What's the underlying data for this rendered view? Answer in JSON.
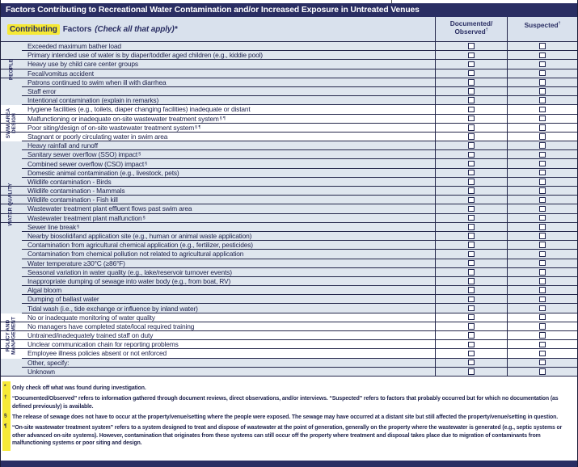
{
  "title": "Factors Contributing to Recreational Water Contamination and/or Increased Exposure in Untreated Venues",
  "header": {
    "contributing": "Contributing",
    "factors": "Factors",
    "check_note": "(Check all that apply)*",
    "col_documented_line1": "Documented/",
    "col_documented_line2": "Observed",
    "col_suspected": "Suspected",
    "dagger": "†"
  },
  "groups": [
    {
      "id": "people",
      "label": "PEOPLE",
      "lines": [
        "PEOPLE"
      ],
      "start": 1,
      "end": 4
    },
    {
      "id": "swim-area-design",
      "label": "SWIM AREA DESIGN",
      "lines": [
        "SWIM AREA",
        "DESIGN"
      ],
      "start": 7,
      "end": 10
    },
    {
      "id": "water-quality",
      "label": "WATER QUALITY",
      "lines": [
        "WATER QUALITY"
      ],
      "start": 15,
      "end": 20
    },
    {
      "id": "policy-and-management",
      "label": "POLICY AND MANAGEMENT",
      "lines": [
        "POLICY AND",
        "MANAGEMENT"
      ],
      "start": 30,
      "end": 34
    }
  ],
  "rows": [
    {
      "label": "Exceeded maximum bather load",
      "sup": "",
      "shaded": true,
      "group": null,
      "documented": false,
      "suspected": false
    },
    {
      "label": "Primary intended use of water is by diaper/toddler aged children (e.g., kiddie pool)",
      "sup": "",
      "shaded": true,
      "group": 0,
      "documented": false,
      "suspected": false
    },
    {
      "label": "Heavy use by child care center groups",
      "sup": "",
      "shaded": true,
      "group": 0,
      "documented": false,
      "suspected": false
    },
    {
      "label": "Fecal/vomitus accident",
      "sup": "",
      "shaded": true,
      "group": 0,
      "documented": false,
      "suspected": false
    },
    {
      "label": "Patrons continued to swim when ill with diarrhea",
      "sup": "",
      "shaded": true,
      "group": 0,
      "documented": false,
      "suspected": false
    },
    {
      "label": "Staff error",
      "sup": "",
      "shaded": true,
      "group": null,
      "documented": false,
      "suspected": false
    },
    {
      "label": "Intentional contamination (explain in remarks)",
      "sup": "",
      "shaded": true,
      "group": null,
      "documented": false,
      "suspected": false
    },
    {
      "label": "Hygiene facilities (e.g., toilets, diaper changing facilities) inadequate or distant",
      "sup": "",
      "shaded": false,
      "group": 1,
      "documented": false,
      "suspected": false
    },
    {
      "label": "Malfunctioning or inadequate on-site wastewater treatment system ",
      "sup": "§ ¶",
      "shaded": false,
      "group": 1,
      "documented": false,
      "suspected": false
    },
    {
      "label": "Poor siting/design of on-site wastewater treatment system ",
      "sup": "§ ¶",
      "shaded": false,
      "group": 1,
      "documented": false,
      "suspected": false
    },
    {
      "label": "Stagnant or poorly circulating water in swim area",
      "sup": "",
      "shaded": false,
      "group": 1,
      "documented": false,
      "suspected": false
    },
    {
      "label": "Heavy rainfall and runoff",
      "sup": "",
      "shaded": true,
      "group": null,
      "documented": false,
      "suspected": false
    },
    {
      "label": "Sanitary sewer overflow (SSO) impact ",
      "sup": "§",
      "shaded": true,
      "group": null,
      "documented": false,
      "suspected": false
    },
    {
      "label": "Combined sewer overflow (CSO) impact",
      "sup": "§",
      "shaded": true,
      "group": null,
      "documented": false,
      "suspected": false
    },
    {
      "label": "Domestic animal contamination (e.g., livestock, pets)",
      "sup": "",
      "shaded": true,
      "group": null,
      "documented": false,
      "suspected": false
    },
    {
      "label": "Wildlife contamination - Birds",
      "sup": "",
      "shaded": true,
      "group": 2,
      "documented": false,
      "suspected": false
    },
    {
      "label": "Wildlife contamination - Mammals",
      "sup": "",
      "shaded": true,
      "group": 2,
      "documented": false,
      "suspected": false
    },
    {
      "label": "Wildlife contamination - Fish kill",
      "sup": "",
      "shaded": true,
      "group": 2,
      "documented": false,
      "suspected": false
    },
    {
      "label": "Wastewater treatment plant effluent flows past swim area",
      "sup": "",
      "shaded": true,
      "group": 2,
      "documented": false,
      "suspected": false
    },
    {
      "label": "Wastewater treatment plant malfunction ",
      "sup": "§",
      "shaded": true,
      "group": 2,
      "documented": false,
      "suspected": false
    },
    {
      "label": "Sewer line break ",
      "sup": "§",
      "shaded": true,
      "group": 2,
      "documented": false,
      "suspected": false
    },
    {
      "label": "Nearby biosolid/land application site (e.g., human or animal waste application)",
      "sup": "",
      "shaded": true,
      "group": null,
      "documented": false,
      "suspected": false
    },
    {
      "label": "Contamination from agricultural chemical application (e.g., fertilizer, pesticides)",
      "sup": "",
      "shaded": true,
      "group": null,
      "documented": false,
      "suspected": false
    },
    {
      "label": "Contamination from chemical pollution not related to agricultural application",
      "sup": "",
      "shaded": true,
      "group": null,
      "documented": false,
      "suspected": false
    },
    {
      "label": "Water temperature ≥30°C (≥86°F)",
      "sup": "",
      "shaded": true,
      "group": null,
      "documented": false,
      "suspected": false
    },
    {
      "label": "Seasonal variation in water quality (e.g., lake/reservoir turnover events)",
      "sup": "",
      "shaded": true,
      "group": null,
      "documented": false,
      "suspected": false
    },
    {
      "label": "Inappropriate dumping of sewage into water body (e.g., from boat, RV)",
      "sup": "",
      "shaded": true,
      "group": null,
      "documented": false,
      "suspected": false
    },
    {
      "label": "Algal bloom",
      "sup": "",
      "shaded": true,
      "group": null,
      "documented": false,
      "suspected": false
    },
    {
      "label": "Dumping of ballast water",
      "sup": "",
      "shaded": true,
      "group": null,
      "documented": false,
      "suspected": false
    },
    {
      "label": "Tidal wash (i.e., tide exchange or influence by inland water)",
      "sup": "",
      "shaded": true,
      "group": null,
      "documented": false,
      "suspected": false
    },
    {
      "label": "No or inadequate monitoring of water quality",
      "sup": "",
      "shaded": false,
      "group": 3,
      "documented": false,
      "suspected": false
    },
    {
      "label": "No managers have completed state/local required training",
      "sup": "",
      "shaded": false,
      "group": 3,
      "documented": false,
      "suspected": false
    },
    {
      "label": "Untrained/inadequately trained staff on duty",
      "sup": "",
      "shaded": false,
      "group": 3,
      "documented": false,
      "suspected": false
    },
    {
      "label": "Unclear communication chain for reporting problems",
      "sup": "",
      "shaded": false,
      "group": 3,
      "documented": false,
      "suspected": false
    },
    {
      "label": "Employee illness policies absent or not enforced",
      "sup": "",
      "shaded": false,
      "group": 3,
      "documented": false,
      "suspected": false
    },
    {
      "label": "Other, specify:",
      "sup": "",
      "shaded": true,
      "group": null,
      "documented": false,
      "suspected": false
    },
    {
      "label": "Unknown",
      "sup": "",
      "shaded": true,
      "group": null,
      "documented": false,
      "suspected": false
    }
  ],
  "footnotes": [
    {
      "symbol": "*",
      "text": "Only check off what was found during investigation."
    },
    {
      "symbol": "†",
      "text": "“Documented/Observed” refers to information gathered through document reviews, direct observations, and/or interviews. “Suspected” refers to factors that probably occurred but for which no documentation (as defined previously) is available."
    },
    {
      "symbol": "§",
      "text": "The release of sewage does not have to occur at the property/venue/setting where the people were exposed. The sewage may have occurred at a distant site but still affected the property/venue/setting in question."
    },
    {
      "symbol": "¶",
      "text": "“On-site wastewater treatment system” refers to a system designed to treat and dispose of wastewater at the point of generation, generally on the property where the wastewater is generated (e.g., septic systems or other advanced on-site systems). However, contamination that originates from these systems can still occur off the property where treatment and disposal takes place due to migration of contaminants from malfunctioning systems or poor siting and design."
    }
  ],
  "colors": {
    "navy": "#2a2e63",
    "ink": "#20244e",
    "grid": "#23264a",
    "rowlight": "#dfe6ee",
    "rowwhite": "#ffffff",
    "headerbg": "#d9e1ed",
    "yellow": "#f6e936"
  }
}
